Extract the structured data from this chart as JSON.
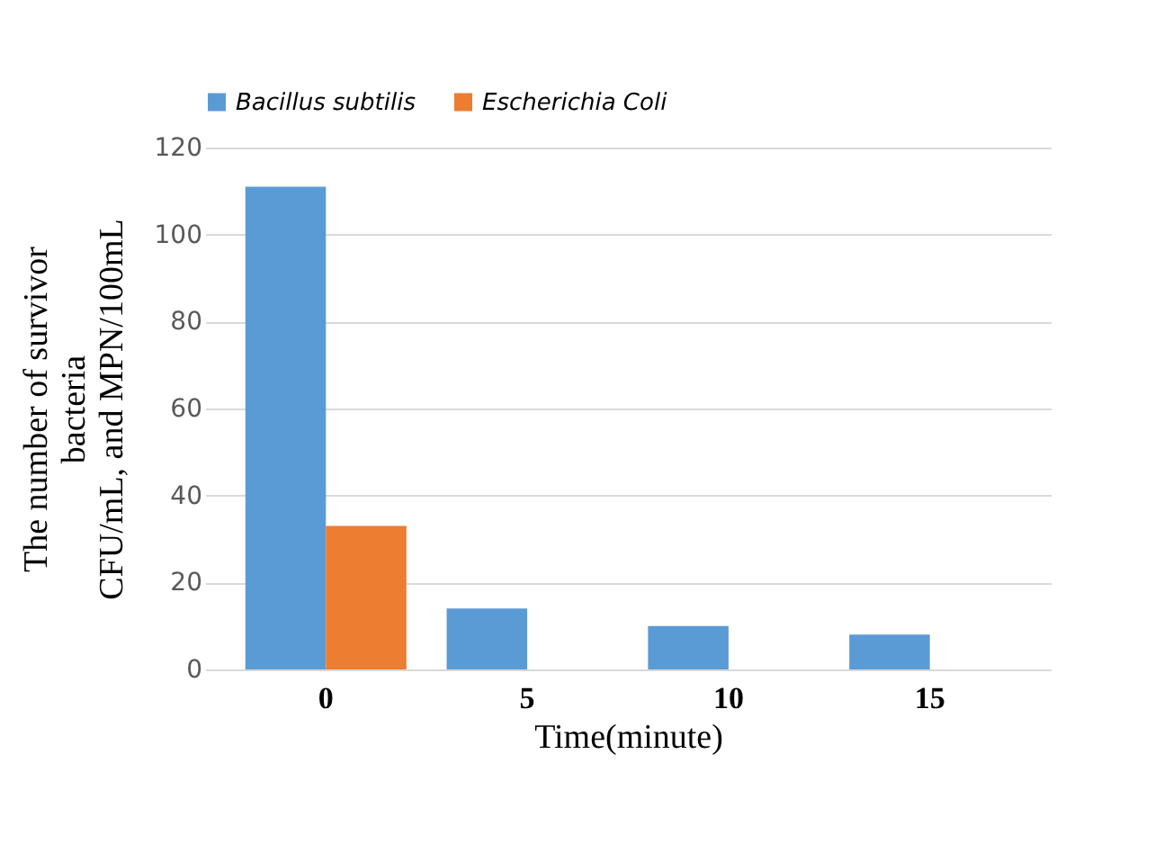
{
  "chart_data": {
    "type": "bar",
    "xlabel": "Time(minute)",
    "ylabel": "The number of survivor\nbacteria\nCFU/mL, and MPN/100mL",
    "categories": [
      "0",
      "5",
      "10",
      "15"
    ],
    "series": [
      {
        "name": "Bacillus subtilis",
        "color": "#5b9bd5",
        "values": [
          111,
          14,
          10,
          8
        ]
      },
      {
        "name": "Escherichia Coli",
        "color": "#ed7d31",
        "values": [
          33,
          0,
          0,
          0
        ]
      }
    ],
    "ylim": [
      0,
      120
    ],
    "yticks": [
      0,
      20,
      40,
      60,
      80,
      100,
      120
    ],
    "grid": "y",
    "legend": "top"
  }
}
